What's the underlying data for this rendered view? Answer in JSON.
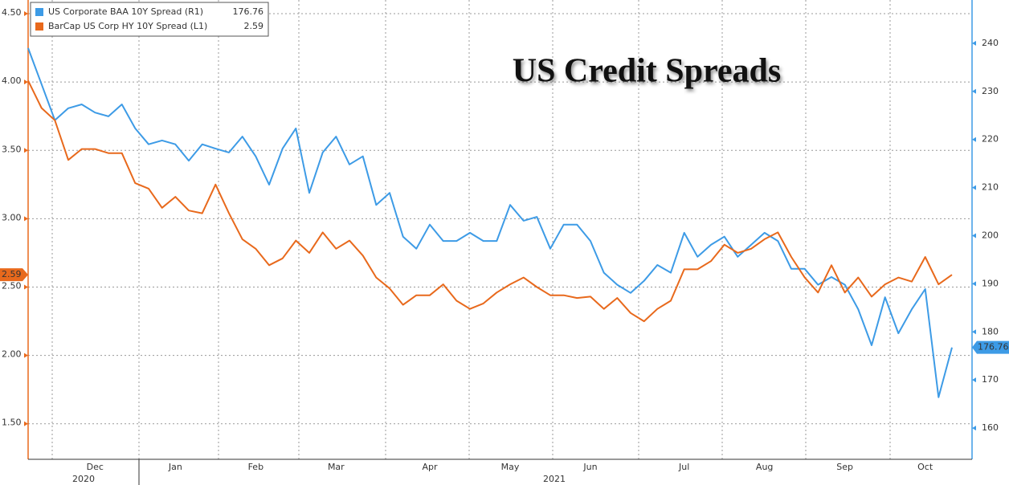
{
  "chart_data": {
    "type": "line",
    "title": "US Credit Spreads",
    "categories": [
      null,
      null,
      null,
      null,
      null,
      "Dec",
      null,
      null,
      null,
      null,
      null,
      "Jan",
      null,
      null,
      null,
      null,
      null,
      "Feb",
      null,
      null,
      null,
      null,
      null,
      "Mar",
      null,
      null,
      null,
      null,
      null,
      null,
      "Apr",
      null,
      null,
      null,
      null,
      null,
      "May",
      null,
      null,
      null,
      null,
      null,
      "Jun",
      null,
      null,
      null,
      null,
      null,
      null,
      "Jul",
      null,
      null,
      null,
      null,
      null,
      "Aug",
      null,
      null,
      null,
      null,
      null,
      "Sep",
      null,
      null,
      null,
      null,
      null,
      "Oct",
      null,
      null
    ],
    "year_labels": [
      "2020",
      "2021"
    ],
    "series": [
      {
        "name": "US Corporate BAA 10Y Spread (R1)",
        "color": "#3d9be6",
        "axis": "y2",
        "values": [
          239.0,
          231.5,
          224.0,
          226.5,
          227.3,
          225.6,
          224.8,
          227.3,
          222.3,
          219.0,
          219.8,
          219.0,
          215.6,
          219.0,
          218.1,
          217.3,
          220.6,
          216.5,
          210.6,
          218.1,
          222.3,
          208.9,
          217.3,
          220.6,
          214.8,
          216.5,
          206.4,
          208.9,
          199.8,
          197.3,
          202.3,
          198.9,
          198.9,
          200.6,
          198.9,
          198.9,
          206.4,
          203.1,
          203.9,
          197.3,
          202.3,
          202.3,
          198.9,
          192.3,
          189.8,
          188.1,
          190.6,
          193.9,
          192.3,
          200.6,
          195.6,
          198.1,
          199.8,
          195.6,
          198.1,
          200.6,
          198.9,
          193.1,
          193.1,
          189.8,
          191.4,
          189.8,
          184.7,
          177.2,
          187.2,
          179.7,
          184.7,
          188.9,
          166.4,
          176.76
        ]
      },
      {
        "name": "BarCap US Corp HY 10Y Spread (L1)",
        "color": "#e8691c",
        "axis": "y",
        "values": [
          4.01,
          3.81,
          3.72,
          3.43,
          3.51,
          3.51,
          3.48,
          3.48,
          3.26,
          3.22,
          3.08,
          3.16,
          3.06,
          3.04,
          3.25,
          3.04,
          2.85,
          2.78,
          2.66,
          2.71,
          2.84,
          2.75,
          2.9,
          2.78,
          2.84,
          2.73,
          2.57,
          2.49,
          2.37,
          2.44,
          2.44,
          2.52,
          2.4,
          2.34,
          2.38,
          2.46,
          2.52,
          2.57,
          2.5,
          2.44,
          2.44,
          2.42,
          2.43,
          2.34,
          2.42,
          2.31,
          2.25,
          2.34,
          2.4,
          2.63,
          2.63,
          2.69,
          2.81,
          2.75,
          2.78,
          2.85,
          2.9,
          2.72,
          2.57,
          2.46,
          2.66,
          2.46,
          2.57,
          2.43,
          2.52,
          2.57,
          2.54,
          2.72,
          2.52,
          2.59
        ]
      }
    ],
    "ylim": [
      1.24,
      4.6
    ],
    "yticks": [
      {
        "value": 1.5,
        "label": "1.50"
      },
      {
        "value": 2,
        "label": "2.00"
      },
      {
        "value": 2.5,
        "label": "2.50"
      },
      {
        "value": 3,
        "label": "3.00"
      },
      {
        "value": 3.5,
        "label": "3.50"
      },
      {
        "value": 4,
        "label": "4.00"
      },
      {
        "value": 4.5,
        "label": "4.50"
      }
    ],
    "y2lim": [
      153.5,
      249.0
    ],
    "y2ticks": [
      160,
      170,
      180,
      190,
      200,
      210,
      220,
      230,
      240
    ],
    "grid": true
  }
}
